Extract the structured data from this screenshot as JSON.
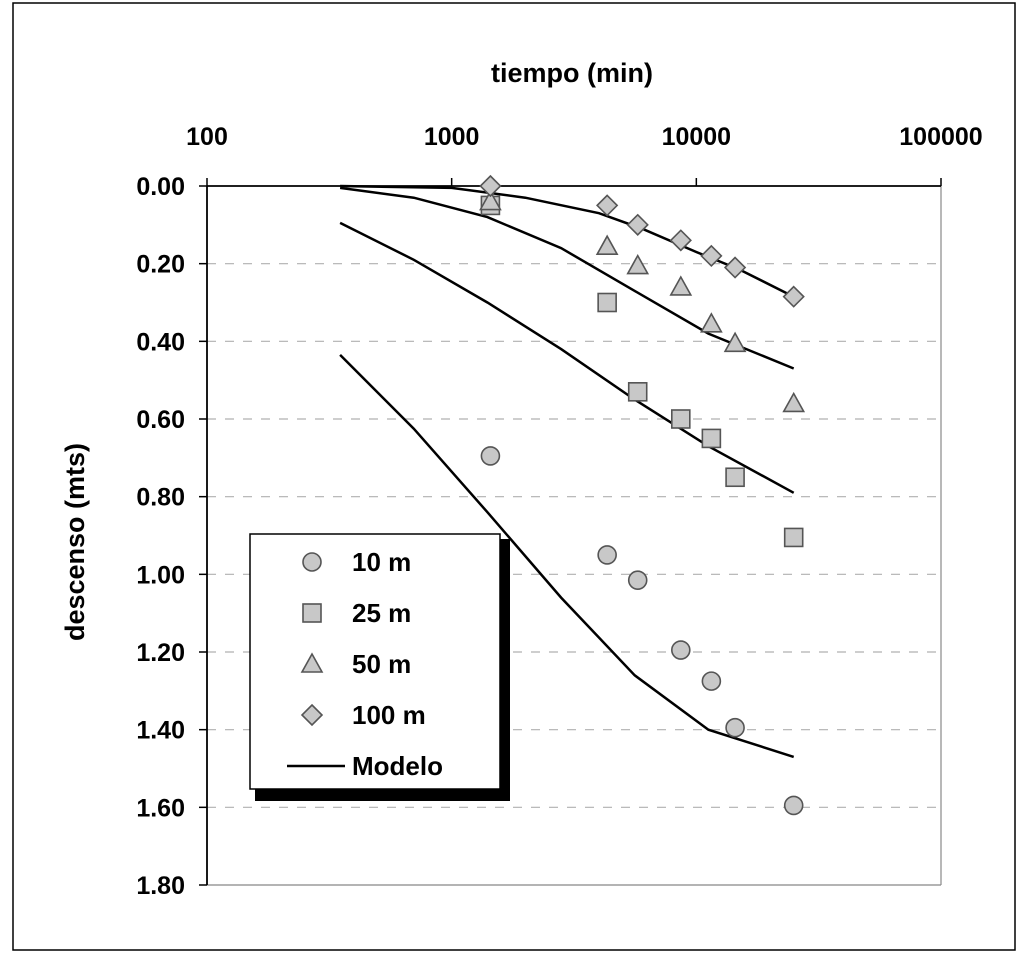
{
  "chart_data": {
    "type": "scatter",
    "title": "",
    "xlabel": "tiempo (min)",
    "ylabel": "descenso (mts)",
    "x_scale": "log",
    "x_axis_position": "top",
    "y_inverted": true,
    "xlim": [
      100,
      100000
    ],
    "ylim": [
      0,
      1.8
    ],
    "x_ticks": [
      "100",
      "1000",
      "10000",
      "100000"
    ],
    "y_ticks": [
      "0.00",
      "0.20",
      "0.40",
      "0.60",
      "0.80",
      "1.00",
      "1.20",
      "1.40",
      "1.60",
      "1.80"
    ],
    "grid": "horizontal-dashed",
    "legend_position": "bottom-left",
    "series": [
      {
        "name": "10 m",
        "marker": "circle",
        "points": [
          [
            1440,
            0.695
          ],
          [
            4320,
            0.95
          ],
          [
            5760,
            1.015
          ],
          [
            8640,
            1.195
          ],
          [
            11520,
            1.275
          ],
          [
            14400,
            1.395
          ],
          [
            25000,
            1.595
          ]
        ]
      },
      {
        "name": "25 m",
        "marker": "square",
        "points": [
          [
            1440,
            0.05
          ],
          [
            4320,
            0.3
          ],
          [
            5760,
            0.53
          ],
          [
            8640,
            0.6
          ],
          [
            11520,
            0.65
          ],
          [
            14400,
            0.75
          ],
          [
            25000,
            0.905
          ]
        ]
      },
      {
        "name": "50 m",
        "marker": "triangle",
        "points": [
          [
            1440,
            0.04
          ],
          [
            4320,
            0.155
          ],
          [
            5760,
            0.205
          ],
          [
            8640,
            0.26
          ],
          [
            11520,
            0.355
          ],
          [
            14400,
            0.405
          ],
          [
            25000,
            0.56
          ]
        ]
      },
      {
        "name": "100 m",
        "marker": "diamond",
        "points": [
          [
            1440,
            0.0
          ],
          [
            4320,
            0.05
          ],
          [
            5760,
            0.1
          ],
          [
            8640,
            0.14
          ],
          [
            11520,
            0.18
          ],
          [
            14400,
            0.21
          ],
          [
            25000,
            0.285
          ]
        ]
      }
    ],
    "model_name": "Modelo",
    "model_lines": [
      [
        [
          350,
          0.435
        ],
        [
          700,
          0.625
        ],
        [
          1400,
          0.84
        ],
        [
          2800,
          1.06
        ],
        [
          5600,
          1.26
        ],
        [
          11200,
          1.4
        ],
        [
          25000,
          1.47
        ]
      ],
      [
        [
          350,
          0.095
        ],
        [
          700,
          0.19
        ],
        [
          1400,
          0.3
        ],
        [
          2800,
          0.42
        ],
        [
          5600,
          0.55
        ],
        [
          11200,
          0.67
        ],
        [
          25000,
          0.79
        ]
      ],
      [
        [
          350,
          0.005
        ],
        [
          700,
          0.03
        ],
        [
          1400,
          0.08
        ],
        [
          2800,
          0.16
        ],
        [
          5600,
          0.27
        ],
        [
          11200,
          0.38
        ],
        [
          25000,
          0.47
        ]
      ],
      [
        [
          350,
          0.0
        ],
        [
          1000,
          0.005
        ],
        [
          2000,
          0.03
        ],
        [
          4000,
          0.07
        ],
        [
          6000,
          0.11
        ],
        [
          10000,
          0.17
        ],
        [
          15000,
          0.215
        ],
        [
          25000,
          0.285
        ]
      ]
    ],
    "colors": {
      "marker_fill": "#c8c8c8",
      "marker_stroke": "#555555",
      "line": "#000000",
      "grid": "#b0b0b0"
    }
  }
}
